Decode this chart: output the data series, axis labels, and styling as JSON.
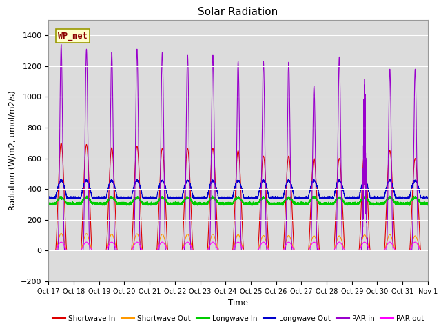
{
  "title": "Solar Radiation",
  "ylabel": "Radiation (W/m2, umol/m2/s)",
  "xlabel": "Time",
  "ylim": [
    -200,
    1500
  ],
  "yticks": [
    -200,
    0,
    200,
    400,
    600,
    800,
    1000,
    1200,
    1400
  ],
  "bg_color": "#dcdcdc",
  "fig_color": "#ffffff",
  "grid_color": "#ffffff",
  "label_box_text": "WP_met",
  "label_box_bg": "#ffffcc",
  "label_box_edge": "#999900",
  "x_tick_labels": [
    "Oct 17",
    "Oct 18",
    "Oct 19",
    "Oct 20",
    "Oct 21",
    "Oct 22",
    "Oct 23",
    "Oct 24",
    "Oct 25",
    "Oct 26",
    "Oct 27",
    "Oct 28",
    "Oct 29",
    "Oct 30",
    "Oct 31",
    "Nov 1"
  ],
  "series_colors": {
    "sw_in": "#dd0000",
    "sw_out": "#ff9900",
    "lw_in": "#00cc00",
    "lw_out": "#0000cc",
    "par_in": "#9900cc",
    "par_out": "#ff00ff"
  },
  "series_labels": [
    "Shortwave In",
    "Shortwave Out",
    "Longwave In",
    "Longwave Out",
    "PAR in",
    "PAR out"
  ],
  "n_days": 15,
  "pts_per_day": 500,
  "sw_in_peaks": [
    700,
    690,
    670,
    680,
    665,
    665,
    665,
    650,
    615,
    615,
    600,
    600,
    640,
    650,
    600
  ],
  "par_in_peaks": [
    1340,
    1310,
    1290,
    1310,
    1290,
    1270,
    1270,
    1230,
    1230,
    1225,
    1070,
    1260,
    1140,
    1180,
    1180
  ],
  "day_start": 0.28,
  "day_end": 0.72,
  "lw_in_base": 305,
  "lw_out_base": 345,
  "lw_in_day_bump": 40,
  "lw_out_day_bump": 110,
  "sw_out_ratio": 0.16,
  "par_out_peak": 55
}
